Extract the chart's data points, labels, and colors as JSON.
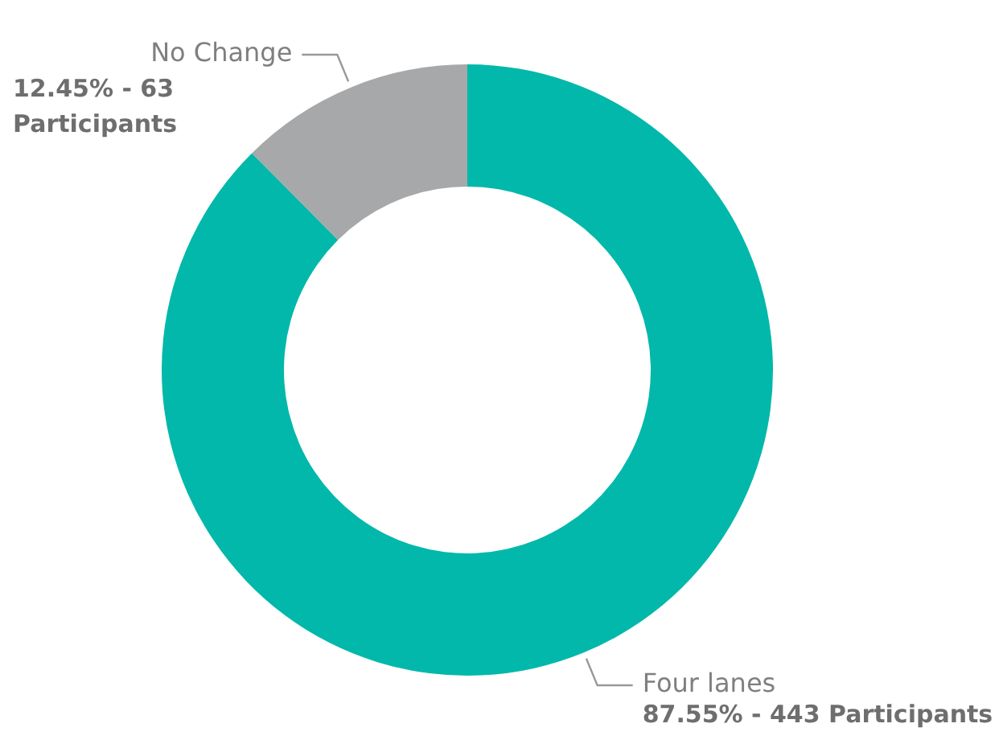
{
  "chart_data": {
    "type": "donut",
    "categories": [
      "Four lanes",
      "No Change"
    ],
    "values": [
      87.55,
      12.45
    ],
    "colors": [
      "#01b8aa",
      "#a6a8a9"
    ],
    "value_labels": [
      "87.55% - 443 Participants",
      "12.45% - 63 Participants"
    ],
    "legend": false
  }
}
